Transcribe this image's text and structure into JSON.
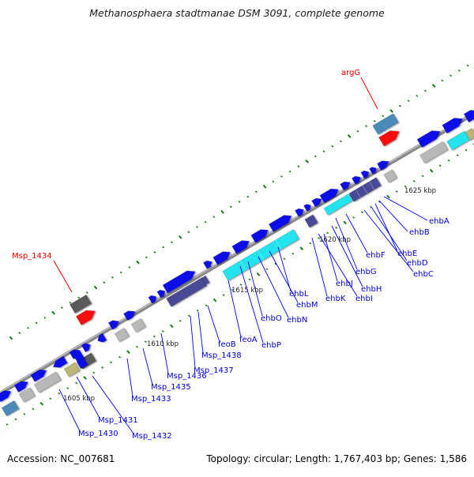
{
  "title": "Methanosphaera stadtmanae DSM 3091, complete genome",
  "footer": {
    "accession": "Accession: NC_007681",
    "summary": "Topology: circular; Length: 1,767,403 bp; Genes: 1,586"
  },
  "colors": {
    "gene": "#1010e8",
    "operon": "#4a4a96",
    "cyan": "#22e3ee",
    "rna": "#b8b8b8",
    "highlight": "#ff1010",
    "blue_gray": "#4a8ab8",
    "dark_gray": "#5a5a5a",
    "olive": "#bcb478",
    "label_blue": "#0000cc",
    "label_red": "#e00000",
    "leader_blue": "#0000ff",
    "leader_red": "#ee0000",
    "tick": "#1a7a1a",
    "backbone": "#8a8a8a"
  },
  "kbp_labels": [
    "1605 kbp",
    "1610 kbp",
    "1615 kbp",
    "1620 kbp",
    "1625 kbp"
  ],
  "red_labels": [
    "Msp_1434",
    "argG"
  ],
  "blue_labels": [
    "ehbA",
    "ehbB",
    "ehbE",
    "ehbD",
    "ehbC",
    "ehbF",
    "ehbG",
    "ehbH",
    "ehbJ",
    "ehbI",
    "ehbL",
    "ehbK",
    "ehbM",
    "ehbN",
    "ehbO",
    "ehbP",
    "feoA",
    "feoB",
    "Msp_1438",
    "Msp_1437",
    "Msp_1436",
    "Msp_1435",
    "Msp_1433",
    "Msp_1431",
    "Msp_1430",
    "Msp_1432"
  ]
}
